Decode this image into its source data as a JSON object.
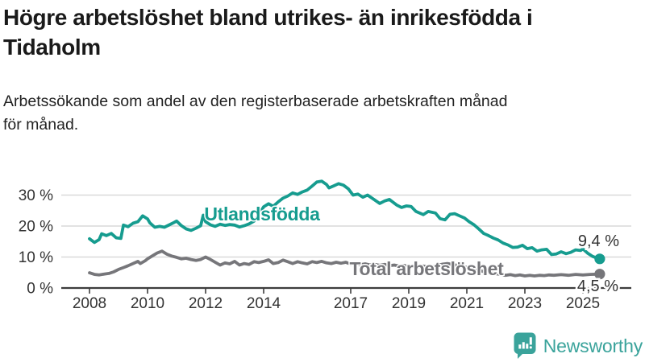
{
  "header": {
    "title_lines": [
      "Högre arbetslöshet bland utrikes- än inrikesfödda i",
      "Tidaholm"
    ],
    "subtitle_lines": [
      "Arbetssökande som andel av den registerbaserade arbetskraften månad",
      "för månad."
    ]
  },
  "chart_data": {
    "type": "line",
    "title": "Högre arbetslöshet bland utrikes- än inrikesfödda i Tidaholm",
    "subtitle": "Arbetssökande som andel av den registerbaserade arbetskraften månad för månad.",
    "grid": "horizontal",
    "legend_position": "inline-labels",
    "colors": {
      "grid": "#d9d9d9",
      "axis": "#3d3d3d",
      "tick_text": "#333333",
      "end_label_text": "#333333"
    },
    "x_axis": {
      "range": [
        2007.0,
        2026.6
      ],
      "ticks": [
        {
          "v": 2008,
          "label": "2008"
        },
        {
          "v": 2010,
          "label": "2010"
        },
        {
          "v": 2012,
          "label": "2012"
        },
        {
          "v": 2014,
          "label": "2014"
        },
        {
          "v": 2017,
          "label": "2017"
        },
        {
          "v": 2019,
          "label": "2019"
        },
        {
          "v": 2021,
          "label": "2021"
        },
        {
          "v": 2023,
          "label": "2023"
        },
        {
          "v": 2025,
          "label": "2025"
        }
      ]
    },
    "y_axis": {
      "range": [
        0,
        41
      ],
      "unit": "%",
      "ticks": [
        {
          "v": 0,
          "label": "0 %"
        },
        {
          "v": 10,
          "label": "10 %"
        },
        {
          "v": 20,
          "label": "20 %"
        },
        {
          "v": 30,
          "label": "30 %"
        }
      ]
    },
    "series": [
      {
        "name": "Utlandsfödda",
        "color": "#169c8f",
        "end_label": "9,4 %",
        "end_value": 9.4,
        "points": [
          [
            2008.0,
            15.9
          ],
          [
            2008.17,
            14.7
          ],
          [
            2008.33,
            15.6
          ],
          [
            2008.42,
            17.5
          ],
          [
            2008.58,
            16.9
          ],
          [
            2008.75,
            17.6
          ],
          [
            2008.92,
            16.2
          ],
          [
            2009.08,
            16.0
          ],
          [
            2009.17,
            20.3
          ],
          [
            2009.33,
            19.8
          ],
          [
            2009.5,
            20.9
          ],
          [
            2009.67,
            21.4
          ],
          [
            2009.83,
            23.3
          ],
          [
            2010.0,
            22.3
          ],
          [
            2010.08,
            21.0
          ],
          [
            2010.25,
            19.6
          ],
          [
            2010.42,
            19.9
          ],
          [
            2010.58,
            19.6
          ],
          [
            2010.75,
            20.4
          ],
          [
            2010.92,
            21.2
          ],
          [
            2011.0,
            21.6
          ],
          [
            2011.17,
            20.1
          ],
          [
            2011.33,
            19.1
          ],
          [
            2011.5,
            18.6
          ],
          [
            2011.67,
            19.3
          ],
          [
            2011.83,
            20.1
          ],
          [
            2011.92,
            23.5
          ],
          [
            2012.0,
            21.4
          ],
          [
            2012.17,
            20.4
          ],
          [
            2012.33,
            19.9
          ],
          [
            2012.5,
            20.6
          ],
          [
            2012.67,
            20.2
          ],
          [
            2012.83,
            20.5
          ],
          [
            2013.0,
            20.3
          ],
          [
            2013.17,
            19.7
          ],
          [
            2013.33,
            20.1
          ],
          [
            2013.5,
            20.7
          ],
          [
            2013.67,
            21.6
          ],
          [
            2013.83,
            23.6
          ],
          [
            2014.0,
            26.2
          ],
          [
            2014.17,
            27.2
          ],
          [
            2014.33,
            26.4
          ],
          [
            2014.5,
            27.8
          ],
          [
            2014.67,
            29.0
          ],
          [
            2014.83,
            29.7
          ],
          [
            2015.0,
            30.7
          ],
          [
            2015.17,
            30.2
          ],
          [
            2015.33,
            31.0
          ],
          [
            2015.5,
            31.6
          ],
          [
            2015.67,
            32.9
          ],
          [
            2015.83,
            34.2
          ],
          [
            2016.0,
            34.5
          ],
          [
            2016.17,
            33.4
          ],
          [
            2016.25,
            32.3
          ],
          [
            2016.42,
            33.0
          ],
          [
            2016.58,
            33.7
          ],
          [
            2016.75,
            33.2
          ],
          [
            2016.92,
            32.0
          ],
          [
            2017.08,
            30.0
          ],
          [
            2017.25,
            30.3
          ],
          [
            2017.42,
            29.3
          ],
          [
            2017.58,
            30.0
          ],
          [
            2017.75,
            28.9
          ],
          [
            2018.0,
            27.3
          ],
          [
            2018.17,
            28.1
          ],
          [
            2018.33,
            28.6
          ],
          [
            2018.58,
            26.8
          ],
          [
            2018.75,
            26.0
          ],
          [
            2018.92,
            26.5
          ],
          [
            2019.08,
            26.3
          ],
          [
            2019.25,
            24.7
          ],
          [
            2019.5,
            23.7
          ],
          [
            2019.67,
            24.7
          ],
          [
            2019.92,
            24.2
          ],
          [
            2020.08,
            22.4
          ],
          [
            2020.25,
            22.0
          ],
          [
            2020.42,
            23.8
          ],
          [
            2020.58,
            24.0
          ],
          [
            2020.75,
            23.3
          ],
          [
            2020.92,
            22.6
          ],
          [
            2021.08,
            21.4
          ],
          [
            2021.25,
            20.4
          ],
          [
            2021.42,
            19.0
          ],
          [
            2021.58,
            17.6
          ],
          [
            2021.75,
            16.9
          ],
          [
            2021.92,
            16.1
          ],
          [
            2022.08,
            15.5
          ],
          [
            2022.25,
            14.5
          ],
          [
            2022.42,
            13.9
          ],
          [
            2022.58,
            13.1
          ],
          [
            2022.75,
            13.2
          ],
          [
            2022.92,
            13.8
          ],
          [
            2023.08,
            12.7
          ],
          [
            2023.25,
            13.0
          ],
          [
            2023.42,
            11.9
          ],
          [
            2023.58,
            12.3
          ],
          [
            2023.75,
            12.5
          ],
          [
            2023.92,
            10.8
          ],
          [
            2024.08,
            11.0
          ],
          [
            2024.25,
            11.7
          ],
          [
            2024.42,
            11.1
          ],
          [
            2024.58,
            11.5
          ],
          [
            2024.75,
            12.3
          ],
          [
            2024.92,
            12.1
          ],
          [
            2025.0,
            12.6
          ],
          [
            2025.17,
            11.2
          ],
          [
            2025.33,
            10.2
          ],
          [
            2025.5,
            9.6
          ],
          [
            2025.58,
            9.4
          ]
        ]
      },
      {
        "name": "Total arbetslöshet",
        "color": "#76767a",
        "end_label": "4,5 %",
        "end_value": 4.5,
        "points": [
          [
            2008.0,
            4.9
          ],
          [
            2008.17,
            4.4
          ],
          [
            2008.33,
            4.2
          ],
          [
            2008.5,
            4.5
          ],
          [
            2008.67,
            4.7
          ],
          [
            2008.83,
            5.2
          ],
          [
            2009.0,
            6.0
          ],
          [
            2009.17,
            6.6
          ],
          [
            2009.33,
            7.2
          ],
          [
            2009.5,
            7.9
          ],
          [
            2009.67,
            8.6
          ],
          [
            2009.75,
            7.9
          ],
          [
            2009.92,
            8.8
          ],
          [
            2010.0,
            9.4
          ],
          [
            2010.17,
            10.4
          ],
          [
            2010.33,
            11.3
          ],
          [
            2010.5,
            11.9
          ],
          [
            2010.67,
            10.9
          ],
          [
            2010.83,
            10.3
          ],
          [
            2011.0,
            9.9
          ],
          [
            2011.17,
            9.4
          ],
          [
            2011.33,
            9.6
          ],
          [
            2011.5,
            9.2
          ],
          [
            2011.67,
            8.9
          ],
          [
            2011.83,
            9.2
          ],
          [
            2012.0,
            10.0
          ],
          [
            2012.17,
            9.2
          ],
          [
            2012.33,
            8.3
          ],
          [
            2012.5,
            7.4
          ],
          [
            2012.67,
            8.1
          ],
          [
            2012.83,
            7.8
          ],
          [
            2013.0,
            8.6
          ],
          [
            2013.17,
            7.4
          ],
          [
            2013.33,
            7.9
          ],
          [
            2013.5,
            7.6
          ],
          [
            2013.67,
            8.5
          ],
          [
            2013.83,
            8.2
          ],
          [
            2014.0,
            8.6
          ],
          [
            2014.17,
            9.1
          ],
          [
            2014.33,
            7.9
          ],
          [
            2014.5,
            8.2
          ],
          [
            2014.67,
            9.0
          ],
          [
            2014.83,
            8.5
          ],
          [
            2015.0,
            7.9
          ],
          [
            2015.17,
            8.5
          ],
          [
            2015.33,
            8.1
          ],
          [
            2015.5,
            7.8
          ],
          [
            2015.67,
            8.5
          ],
          [
            2015.83,
            8.2
          ],
          [
            2016.0,
            8.6
          ],
          [
            2016.17,
            8.1
          ],
          [
            2016.33,
            7.9
          ],
          [
            2016.5,
            8.3
          ],
          [
            2016.67,
            8.0
          ],
          [
            2016.83,
            8.3
          ],
          [
            2017.0,
            7.7
          ],
          [
            2017.17,
            8.0
          ],
          [
            2017.33,
            7.5
          ],
          [
            2017.5,
            7.8
          ],
          [
            2017.67,
            7.4
          ],
          [
            2017.83,
            7.6
          ],
          [
            2018.0,
            7.3
          ],
          [
            2018.17,
            7.6
          ],
          [
            2018.33,
            7.2
          ],
          [
            2018.5,
            7.4
          ],
          [
            2018.67,
            7.1
          ],
          [
            2018.83,
            7.3
          ],
          [
            2019.0,
            7.0
          ],
          [
            2019.17,
            7.2
          ],
          [
            2019.33,
            6.9
          ],
          [
            2019.5,
            7.1
          ],
          [
            2019.67,
            6.8
          ],
          [
            2019.83,
            7.0
          ],
          [
            2020.0,
            7.3
          ],
          [
            2020.17,
            7.7
          ],
          [
            2020.33,
            7.9
          ],
          [
            2020.5,
            7.6
          ],
          [
            2020.67,
            7.3
          ],
          [
            2020.83,
            7.0
          ],
          [
            2021.0,
            6.7
          ],
          [
            2021.17,
            6.3
          ],
          [
            2021.33,
            5.9
          ],
          [
            2021.5,
            5.5
          ],
          [
            2021.67,
            5.1
          ],
          [
            2021.83,
            4.8
          ],
          [
            2022.0,
            4.6
          ],
          [
            2022.17,
            4.4
          ],
          [
            2022.33,
            4.1
          ],
          [
            2022.5,
            4.3
          ],
          [
            2022.67,
            4.0
          ],
          [
            2022.83,
            4.2
          ],
          [
            2023.0,
            3.9
          ],
          [
            2023.17,
            4.1
          ],
          [
            2023.33,
            3.9
          ],
          [
            2023.5,
            4.1
          ],
          [
            2023.67,
            4.0
          ],
          [
            2023.83,
            4.2
          ],
          [
            2024.0,
            4.1
          ],
          [
            2024.25,
            4.3
          ],
          [
            2024.5,
            4.1
          ],
          [
            2024.75,
            4.4
          ],
          [
            2025.0,
            4.2
          ],
          [
            2025.25,
            4.4
          ],
          [
            2025.58,
            4.5
          ]
        ]
      }
    ]
  },
  "footer": {
    "brand": "Newsworthy",
    "brand_color": "#3aa39b",
    "logo_icon": "bar-chart-speech-bubble"
  }
}
